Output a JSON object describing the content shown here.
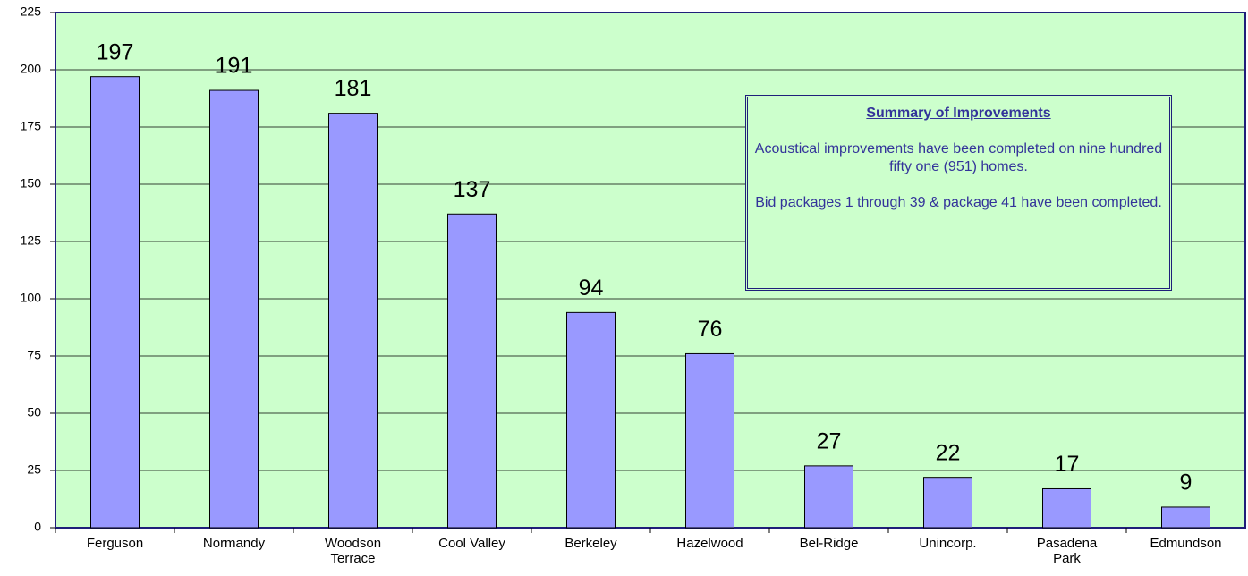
{
  "chart_data": {
    "type": "bar",
    "categories": [
      "Ferguson",
      "Normandy",
      "Woodson Terrace",
      "Cool Valley",
      "Berkeley",
      "Hazelwood",
      "Bel-Ridge",
      "Unincorp.",
      "Pasadena Park",
      "Edmundson"
    ],
    "values": [
      197,
      191,
      181,
      137,
      94,
      76,
      27,
      22,
      17,
      9
    ],
    "color": "#9999ff",
    "ylim": [
      0,
      225
    ],
    "yticks": [
      0,
      25,
      50,
      75,
      100,
      125,
      150,
      175,
      200,
      225
    ],
    "grid": true,
    "annotation": {
      "title": "Summary of Improvements",
      "paragraphs": [
        "Acoustical improvements have been completed on nine hundred fifty one (951) homes.",
        "Bid packages 1 through 39 & package 41 have been completed."
      ]
    }
  }
}
